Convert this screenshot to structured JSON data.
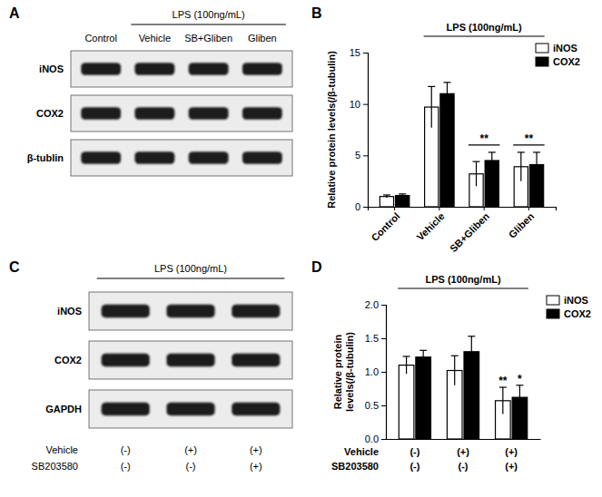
{
  "chart_data": [
    {
      "panel_label": "B",
      "type": "bar",
      "y_label": "Relative protein levels(/β-tubulin)",
      "categories": [
        "Control",
        "Vehicle",
        "SB+Gliben",
        "Gliben"
      ],
      "series": [
        {
          "name": "iNOS",
          "color": "#ffffff",
          "values": [
            1.0,
            9.7,
            3.2,
            3.9
          ],
          "errors": [
            0.15,
            2.0,
            1.2,
            1.4
          ]
        },
        {
          "name": "COX2",
          "color": "#000000",
          "values": [
            1.1,
            11.0,
            4.5,
            4.1
          ],
          "errors": [
            0.15,
            1.1,
            0.8,
            1.2
          ]
        }
      ],
      "ylim": [
        0,
        15
      ],
      "yticks": [
        0,
        5,
        10,
        15
      ],
      "legend": "upper right",
      "annotations": [
        {
          "text": "LPS (100ng/mL)",
          "span": [
            1,
            3
          ]
        },
        {
          "text": "**",
          "category": 2
        },
        {
          "text": "**",
          "category": 3
        }
      ]
    },
    {
      "panel_label": "D",
      "type": "bar",
      "y_label": [
        "Relative protein",
        "levels(/β-tubulin)"
      ],
      "categories": [
        null,
        null,
        null
      ],
      "x_label_rows": [
        {
          "name": "Vehicle",
          "labels": [
            "(-)",
            "(+)",
            "(+)"
          ]
        },
        {
          "name": "SB203580",
          "labels": [
            "(-)",
            "(-)",
            "(+)"
          ]
        }
      ],
      "series": [
        {
          "name": "iNOS",
          "color": "#ffffff",
          "values": [
            1.1,
            1.02,
            0.57
          ],
          "errors": [
            0.13,
            0.22,
            0.2
          ]
        },
        {
          "name": "COX2",
          "color": "#000000",
          "values": [
            1.22,
            1.3,
            0.62
          ],
          "errors": [
            0.1,
            0.23,
            0.18
          ]
        }
      ],
      "ylim": [
        0,
        2
      ],
      "yticks": [
        {
          "value": 0,
          "label": "0.0"
        },
        0.5,
        {
          "value": 1,
          "label": "1.0"
        },
        1.5,
        {
          "value": 2,
          "label": "2.0"
        }
      ],
      "legend": "upper right",
      "annotations": [
        {
          "text": "LPS (100ng/mL)",
          "span": [
            0,
            2
          ]
        },
        {
          "text": "**",
          "category": 2,
          "series": 0
        },
        {
          "text": "*",
          "category": 2,
          "series": 1
        }
      ]
    }
  ],
  "blots": [
    {
      "panel_label": "A",
      "header": "LPS (100ng/mL)",
      "header_span": [
        1,
        3
      ],
      "lanes": [
        "Control",
        "Vehicle",
        "SB+Gliben",
        "Gliben"
      ],
      "rows": [
        "iNOS",
        "COX2",
        "β-tublin"
      ]
    },
    {
      "panel_label": "C",
      "header": "LPS (100ng/mL)",
      "header_span": [
        0,
        2
      ],
      "rows": [
        "iNOS",
        "COX2",
        "GAPDH"
      ],
      "condition_rows": [
        {
          "name": "Vehicle",
          "labels": [
            "(-)",
            "(+)",
            "(+)"
          ]
        },
        {
          "name": "SB203580",
          "labels": [
            "(-)",
            "(-)",
            "(+)"
          ]
        }
      ]
    }
  ]
}
